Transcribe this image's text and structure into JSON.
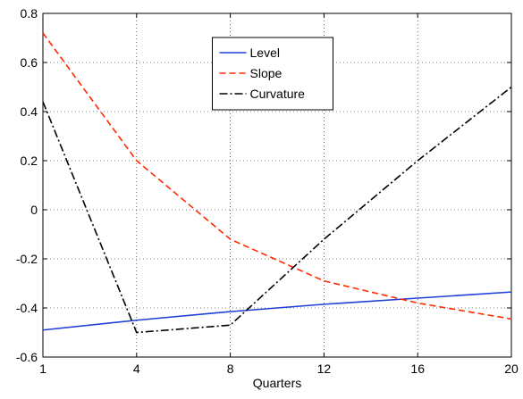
{
  "chart_data": {
    "type": "line",
    "xlabel": "Quarters",
    "categories": [
      "1",
      "4",
      "8",
      "12",
      "16",
      "20"
    ],
    "series": [
      {
        "name": "Level",
        "color": "#1f3fd6",
        "style": "solid",
        "values": [
          -0.49,
          -0.45,
          -0.415,
          -0.385,
          -0.36,
          -0.335
        ]
      },
      {
        "name": "Slope",
        "color": "#ff2a00",
        "style": "dashed",
        "values": [
          0.72,
          0.2,
          -0.12,
          -0.29,
          -0.38,
          -0.445
        ]
      },
      {
        "name": "Curvature",
        "color": "#000000",
        "style": "dashdot",
        "values": [
          0.44,
          -0.5,
          -0.47,
          -0.12,
          0.2,
          0.5
        ]
      }
    ],
    "ylim": [
      -0.6,
      0.8
    ],
    "yticks": [
      -0.6,
      -0.4,
      -0.2,
      0,
      0.2,
      0.4,
      0.6,
      0.8
    ],
    "grid": true,
    "legend": "top-center"
  }
}
